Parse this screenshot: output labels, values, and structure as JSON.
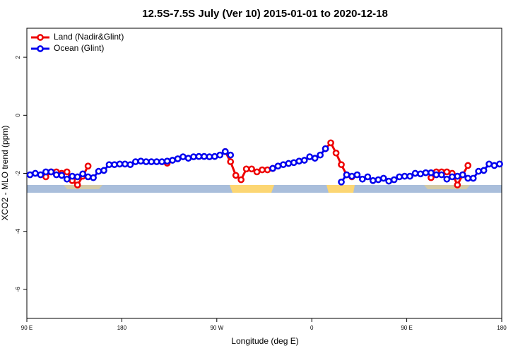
{
  "chart_data": {
    "type": "line",
    "title": "12.5S-7.5S July (Ver 10)   2015-01-01 to 2020-12-18",
    "xlabel": "Longitude (deg E)",
    "ylabel": "XCO2 - MLO trend (ppm)",
    "legend": "top-left",
    "xlim": [
      90,
      540
    ],
    "ylim": [
      -7,
      3
    ],
    "xticks": [
      {
        "value": 90,
        "label": "90 E"
      },
      180,
      {
        "value": 270,
        "label": "90 W"
      },
      {
        "value": 360,
        "label": "0"
      },
      {
        "value": 450,
        "label": "90 E"
      },
      {
        "value": 540,
        "label": "180"
      }
    ],
    "yticks": [
      -6,
      -4,
      -2,
      0,
      2
    ],
    "x": [
      93,
      98,
      103,
      108,
      113,
      118,
      123,
      128,
      133,
      138,
      143,
      148,
      153,
      158,
      163,
      168,
      173,
      178,
      183,
      188,
      193,
      198,
      203,
      208,
      213,
      218,
      223,
      228,
      233,
      238,
      243,
      248,
      253,
      258,
      263,
      268,
      273,
      278,
      283,
      288,
      293,
      298,
      303,
      308,
      313,
      318,
      323,
      328,
      333,
      338,
      343,
      348,
      353,
      358,
      363,
      368,
      373,
      378,
      383,
      388,
      393,
      398,
      403,
      408,
      413,
      418,
      423,
      428,
      433,
      438,
      443,
      448,
      453,
      458,
      463,
      468,
      473,
      478,
      483,
      488,
      493,
      498,
      503,
      508,
      513,
      518,
      523,
      528,
      533,
      538
    ],
    "series": [
      {
        "name": "Land (Nadir&Glint)",
        "color": "#ee0000",
        "values": [
          null,
          null,
          null,
          -2.12,
          -1.95,
          -1.95,
          -2.0,
          -1.95,
          -2.25,
          -2.4,
          -2.1,
          -1.75,
          null,
          null,
          null,
          null,
          null,
          null,
          null,
          null,
          null,
          null,
          null,
          null,
          null,
          null,
          -1.65,
          null,
          null,
          null,
          null,
          null,
          null,
          null,
          null,
          null,
          null,
          -1.25,
          -1.6,
          -2.07,
          -2.22,
          -1.85,
          -1.85,
          -1.95,
          -1.88,
          -1.88,
          -1.83,
          null,
          null,
          null,
          null,
          null,
          null,
          null,
          null,
          null,
          -1.15,
          -0.95,
          -1.3,
          -1.7,
          -2.05,
          -2.12,
          null,
          null,
          null,
          null,
          null,
          null,
          null,
          null,
          null,
          null,
          null,
          null,
          null,
          null,
          -2.15,
          -1.95,
          -1.95,
          -1.95,
          -2.0,
          -2.4,
          -2.05,
          -1.73,
          null,
          null,
          null,
          null,
          null,
          null
        ]
      },
      {
        "name": "Ocean (Glint)",
        "color": "#0000ee",
        "values": [
          -2.05,
          -2.0,
          -2.05,
          -1.95,
          -1.95,
          -2.05,
          -2.07,
          -2.2,
          -2.1,
          -2.12,
          -2.02,
          -2.12,
          -2.15,
          -1.93,
          -1.9,
          -1.7,
          -1.7,
          -1.68,
          -1.68,
          -1.7,
          -1.6,
          -1.58,
          -1.6,
          -1.6,
          -1.6,
          -1.6,
          -1.58,
          -1.55,
          -1.5,
          -1.43,
          -1.48,
          -1.43,
          -1.42,
          -1.42,
          -1.43,
          -1.42,
          -1.37,
          -1.25,
          -1.37,
          null,
          null,
          null,
          null,
          null,
          null,
          null,
          -1.83,
          -1.75,
          -1.7,
          -1.66,
          -1.63,
          -1.58,
          -1.55,
          -1.43,
          -1.48,
          -1.37,
          -1.15,
          null,
          null,
          -2.3,
          -2.05,
          -2.1,
          -2.05,
          -2.2,
          -2.12,
          -2.25,
          -2.22,
          -2.17,
          -2.27,
          -2.22,
          -2.12,
          -2.1,
          -2.1,
          -2.0,
          -2.02,
          -1.98,
          -1.98,
          -2.05,
          -2.05,
          -2.2,
          -2.12,
          -2.1,
          -2.05,
          -2.17,
          -2.17,
          -1.93,
          -1.9,
          -1.68,
          -1.73,
          -1.68
        ]
      }
    ]
  }
}
